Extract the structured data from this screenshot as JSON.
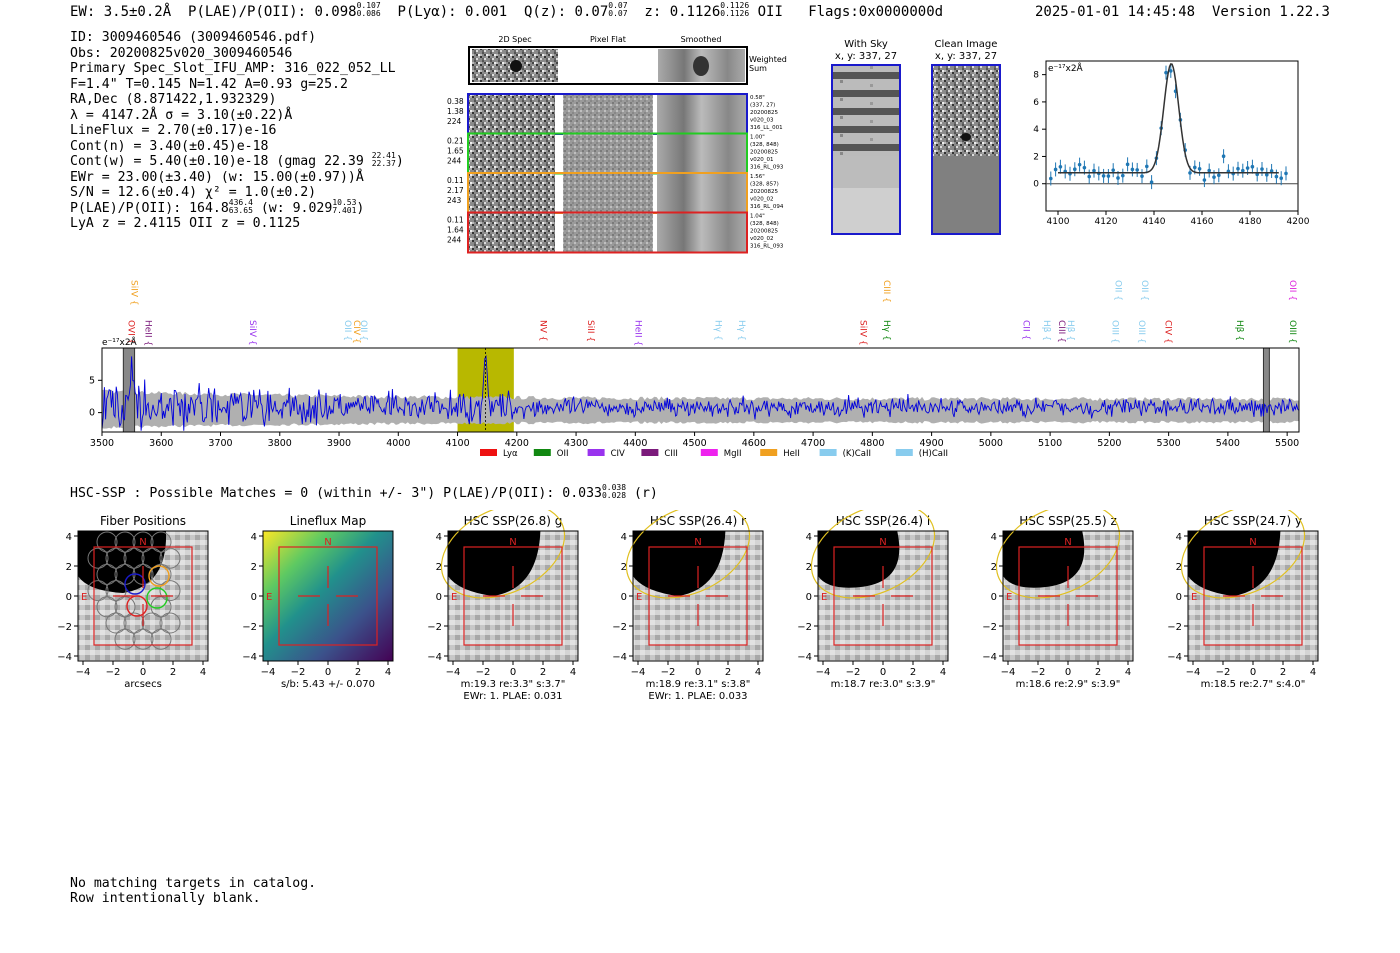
{
  "header": {
    "ew_label": "EW: 3.5±0.2",
    "ew_unit": "Å",
    "plae_label": "P(LAE)/P(OII): 0.098",
    "plae_sup": "0.107",
    "plae_sub": "0.086",
    "plya_label": "P(Lyα): 0.001",
    "q_label": "Q(z): 0.07",
    "q_sup": "0.07",
    "q_sub": "0.07",
    "z_label": "z: 0.1126",
    "z_sup": "0.1126",
    "z_sub": "0.1126",
    "z_line": "OII",
    "flags": "Flags:0x0000000d",
    "timestamp": "2025-01-01 14:45:48",
    "version": "Version 1.22.3"
  },
  "info": {
    "id": "ID: 3009460546 (3009460546.pdf)",
    "obs": "Obs: 20200825v020_3009460546",
    "primary": "Primary Spec_Slot_IFU_AMP: 316_022_052_LL",
    "fwhm": "F=1.4\"  T=0.145  N=1.42  A=0.93  g=25.2",
    "radec": "RA,Dec (8.871422,1.932329)",
    "lambda": "λ = 4147.2Å   σ = 3.10(±0.22)Å",
    "lineflux": "LineFlux = 2.70(±0.17)e-16",
    "contn": "Cont(n) = 3.40(±0.45)e-18",
    "contw": "Cont(w) = 5.40(±0.10)e-18 (gmag 22.39",
    "contw_sup": "22.41",
    "contw_sub": "22.37",
    "ewr": "EWr = 23.00(±3.40) (w: 15.00(±0.97))Å",
    "sn": "S/N = 12.6(±0.4)  χ² = 1.0(±0.2)",
    "plae": "P(LAE)/P(OII): 164.8",
    "plae_sup": "436.4",
    "plae_sub": "63.65",
    "plae_w": "(w: 9.029",
    "plae_w_sup": "10.53",
    "plae_w_sub": "7.401",
    "lya_z": "LyA z = 2.4115   OII z = 0.1125"
  },
  "cutouts": {
    "col_2d": "2D Spec",
    "col_flat": "Pixel Flat",
    "col_smooth": "Smoothed",
    "weighted_sum": [
      "Weighted",
      "Sum"
    ],
    "rows": [
      {
        "left": [
          "0.38",
          "1.38",
          "224"
        ],
        "right": [
          "0.58\"",
          "(337, 27)",
          "20200825",
          "v020_03",
          "316_LL_001"
        ],
        "color": "#1a1acc"
      },
      {
        "left": [
          "0.21",
          "1.65",
          "244"
        ],
        "right": [
          "1.00\"",
          "(328, 848)",
          "20200825",
          "v020_01",
          "316_RL_093"
        ],
        "color": "#22cc22"
      },
      {
        "left": [
          "0.11",
          "2.17",
          "243"
        ],
        "right": [
          "1.56\"",
          "(328, 857)",
          "20200825",
          "v020_02",
          "316_RL_094"
        ],
        "color": "#f0a020"
      },
      {
        "left": [
          "0.11",
          "1.64",
          "244"
        ],
        "right": [
          "1.04\"",
          "(328, 848)",
          "20200825",
          "v020_02",
          "316_RL_093"
        ],
        "color": "#dd2222"
      }
    ]
  },
  "images": {
    "with_sky_title": "With Sky",
    "with_sky_xy": "x, y: 337, 27",
    "clean_title": "Clean Image",
    "clean_xy": "x, y: 337, 27"
  },
  "zoom_plot": {
    "unit_label": "e⁻¹⁷x2Å",
    "x_ticks": [
      "4100",
      "4120",
      "4140",
      "4160",
      "4180",
      "4200"
    ],
    "y_ticks": [
      "0",
      "2",
      "4",
      "6",
      "8"
    ]
  },
  "line_labels_upper": [
    {
      "name": "SiIV",
      "wave": 3545,
      "color": "#f0a020"
    },
    {
      "name": "CIII",
      "wave": 4815,
      "color": "#f0a020"
    },
    {
      "name": "OII",
      "wave": 5205,
      "color": "#88ccee"
    },
    {
      "name": "OII",
      "wave": 5250,
      "color": "#88ccee"
    },
    {
      "name": "OII",
      "wave": 5500,
      "color": "#dd22dd"
    }
  ],
  "line_labels_lower": [
    {
      "name": "OVI",
      "wave": 3540,
      "color": "#dd2222"
    },
    {
      "name": "HeII",
      "wave": 3568,
      "color": "#7b1a7b"
    },
    {
      "name": "SiIV",
      "wave": 3745,
      "color": "#9933ee"
    },
    {
      "name": "OII",
      "wave": 3905,
      "color": "#88ccee"
    },
    {
      "name": "CIV",
      "wave": 3920,
      "color": "#f0a020"
    },
    {
      "name": "OII",
      "wave": 3932,
      "color": "#88ccee"
    },
    {
      "name": "NV",
      "wave": 4235,
      "color": "#dd2222"
    },
    {
      "name": "SiII",
      "wave": 4315,
      "color": "#dd2222"
    },
    {
      "name": "HeII",
      "wave": 4395,
      "color": "#9933ee"
    },
    {
      "name": "Hγ",
      "wave": 4530,
      "color": "#88ccee"
    },
    {
      "name": "Hγ",
      "wave": 4570,
      "color": "#88ccee"
    },
    {
      "name": "SiIV",
      "wave": 4775,
      "color": "#dd2222"
    },
    {
      "name": "Hγ",
      "wave": 4815,
      "color": "#118811"
    },
    {
      "name": "CII",
      "wave": 5050,
      "color": "#9933ee"
    },
    {
      "name": "Hβ",
      "wave": 5085,
      "color": "#88ccee"
    },
    {
      "name": "CIII",
      "wave": 5110,
      "color": "#7b1a7b"
    },
    {
      "name": "Hβ",
      "wave": 5125,
      "color": "#88ccee"
    },
    {
      "name": "OIII",
      "wave": 5200,
      "color": "#88ccee"
    },
    {
      "name": "OIII",
      "wave": 5245,
      "color": "#88ccee"
    },
    {
      "name": "CIV",
      "wave": 5290,
      "color": "#dd2222"
    },
    {
      "name": "Hβ",
      "wave": 5410,
      "color": "#118811"
    },
    {
      "name": "OIII",
      "wave": 5500,
      "color": "#118811"
    }
  ],
  "legend": [
    {
      "name": "Lyα",
      "color": "#ee1111"
    },
    {
      "name": "OII",
      "color": "#118811"
    },
    {
      "name": "CIV",
      "color": "#9933ee"
    },
    {
      "name": "CIII",
      "color": "#7b1a7b"
    },
    {
      "name": "MgII",
      "color": "#ee22ee"
    },
    {
      "name": "HeII",
      "color": "#f0a020"
    },
    {
      "name": "(K)CaII",
      "color": "#88ccee"
    },
    {
      "name": "(H)CaII",
      "color": "#88ccee"
    }
  ],
  "hsc": {
    "line": "HSC-SSP : Possible Matches = 0 (within +/- 3\")  P(LAE)/P(OII): 0.033",
    "sup": "0.038",
    "sub": "0.028",
    "band": "(r)",
    "panels": [
      {
        "title": "Fiber Positions",
        "cap1": "arcsecs",
        "cap2": ""
      },
      {
        "title": "Lineflux Map",
        "cap1": "s/b: 5.43 +/- 0.070",
        "cap2": ""
      },
      {
        "title": "HSC SSP(26.8) g",
        "cap1": "m:19.3  re:3.3\"  s:3.7\"",
        "cap2": "EWr: 1. PLAE: 0.031"
      },
      {
        "title": "HSC SSP(26.4) r",
        "cap1": "m:18.9  re:3.1\"  s:3.8\"",
        "cap2": "EWr: 1. PLAE: 0.033"
      },
      {
        "title": "HSC SSP(26.4) i",
        "cap1": "m:18.7  re:3.0\"  s:3.9\"",
        "cap2": ""
      },
      {
        "title": "HSC SSP(25.5) z",
        "cap1": "m:18.6  re:2.9\"  s:3.9\"",
        "cap2": ""
      },
      {
        "title": "HSC SSP(24.7) y",
        "cap1": "m:18.5  re:2.7\"  s:4.0\"",
        "cap2": ""
      }
    ],
    "axis_ticks": [
      "−4",
      "−2",
      "0",
      "2",
      "4"
    ],
    "compass_n": "N",
    "compass_e": "E"
  },
  "footer": {
    "line1": "No matching targets in catalog.",
    "line2": "Row intentionally blank."
  },
  "chart_data": {
    "type": "line",
    "title": "",
    "xlabel": "",
    "ylabel": "e⁻¹⁷x2Å",
    "xlim": [
      3500,
      5520
    ],
    "ylim": [
      -3,
      10
    ],
    "x_ticks": [
      "3500",
      "3600",
      "3700",
      "3800",
      "3900",
      "4000",
      "4100",
      "4200",
      "4300",
      "4400",
      "4500",
      "4600",
      "4700",
      "4800",
      "4900",
      "5000",
      "5100",
      "5200",
      "5300",
      "5400",
      "5500"
    ],
    "y_ticks": [
      "0",
      "5"
    ],
    "highlight_range": [
      4100,
      4195
    ],
    "line_center": 4147.2,
    "series": [
      {
        "name": "spectrum",
        "color": "#0000dd",
        "description": "noisy flux around 0-2, emission peak ~9 at 4147"
      },
      {
        "name": "error",
        "color": "#b0b0b0"
      }
    ],
    "zoom": {
      "xlim": [
        4095,
        4200
      ],
      "ylim": [
        -2,
        9
      ],
      "peak_wave": 4147.2,
      "peak_flux": 8.0,
      "sigma": 3.1
    }
  }
}
